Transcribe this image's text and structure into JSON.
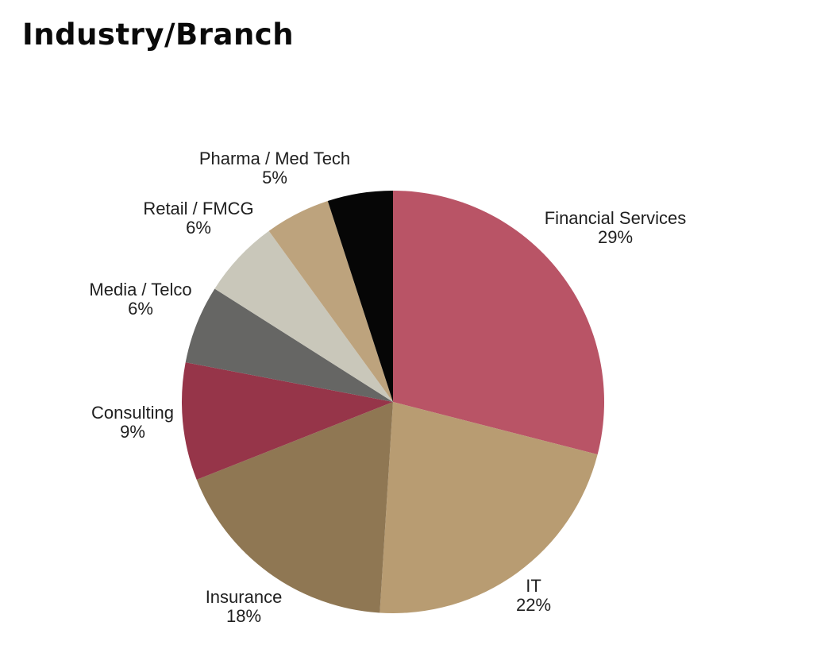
{
  "chart_data": {
    "type": "pie",
    "title": "Industry/Branch",
    "legend": "none",
    "start_angle_deg": 0,
    "direction": "clockwise",
    "background_color": "#ffffff",
    "label_text_color": "#1f1f1f",
    "total": 100,
    "slices": [
      {
        "label": "Financial Services",
        "value": 29,
        "pct_label": "29%",
        "color": "#b95466",
        "labeled": true
      },
      {
        "label": "IT",
        "value": 22,
        "pct_label": "22%",
        "color": "#b89c72",
        "labeled": true
      },
      {
        "label": "Insurance",
        "value": 18,
        "pct_label": "18%",
        "color": "#8f7753",
        "labeled": true
      },
      {
        "label": "Consulting",
        "value": 9,
        "pct_label": "9%",
        "color": "#963549",
        "labeled": true
      },
      {
        "label": "Media / Telco",
        "value": 6,
        "pct_label": "6%",
        "color": "#666664",
        "labeled": true
      },
      {
        "label": "Retail / FMCG",
        "value": 6,
        "pct_label": "6%",
        "color": "#c9c7ba",
        "labeled": true
      },
      {
        "label": "Pharma / Med Tech",
        "value": 5,
        "pct_label": "5%",
        "color": "#bda37d",
        "labeled": true
      },
      {
        "label": "",
        "value": 5,
        "pct_label": "",
        "color": "#060606",
        "labeled": false
      }
    ]
  }
}
